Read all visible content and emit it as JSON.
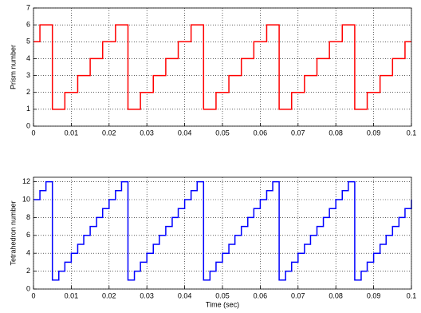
{
  "chart_data": [
    {
      "type": "line",
      "drawstyle": "steps-post",
      "ylabel": "Prism number",
      "color": "#ff0000",
      "grid": true,
      "x": [
        0,
        0.0017,
        0.005,
        0.0083,
        0.0117,
        0.015,
        0.0183,
        0.0217,
        0.025,
        0.0283,
        0.0317,
        0.035,
        0.0383,
        0.0417,
        0.045,
        0.0483,
        0.0517,
        0.055,
        0.0583,
        0.0617,
        0.065,
        0.0683,
        0.0717,
        0.075,
        0.0783,
        0.0817,
        0.085,
        0.0883,
        0.0917,
        0.095,
        0.0983,
        0.1
      ],
      "values": [
        5,
        6,
        1,
        2,
        3,
        4,
        5,
        6,
        1,
        2,
        3,
        4,
        5,
        6,
        1,
        2,
        3,
        4,
        5,
        6,
        1,
        2,
        3,
        4,
        5,
        6,
        1,
        2,
        3,
        4,
        5,
        5
      ],
      "xlim": [
        0,
        0.1
      ],
      "xticks": [
        0,
        0.01,
        0.02,
        0.03,
        0.04,
        0.05,
        0.06,
        0.07,
        0.08,
        0.09,
        0.1
      ],
      "ylim": [
        0,
        7
      ],
      "yticks": [
        0,
        1,
        2,
        3,
        4,
        5,
        6,
        7
      ]
    },
    {
      "type": "line",
      "drawstyle": "steps-post",
      "ylabel": "Tetrahedron number",
      "xlabel": "Time (sec)",
      "color": "#0000ff",
      "grid": true,
      "x": [
        0,
        0.0017,
        0.0033,
        0.005,
        0.0067,
        0.0083,
        0.01,
        0.0117,
        0.0133,
        0.015,
        0.0167,
        0.0183,
        0.02,
        0.0217,
        0.0233,
        0.025,
        0.0267,
        0.0283,
        0.03,
        0.0317,
        0.0333,
        0.035,
        0.0367,
        0.0383,
        0.04,
        0.0417,
        0.0433,
        0.045,
        0.0467,
        0.0483,
        0.05,
        0.0517,
        0.0533,
        0.055,
        0.0567,
        0.0583,
        0.06,
        0.0617,
        0.0633,
        0.065,
        0.0667,
        0.0683,
        0.07,
        0.0717,
        0.0733,
        0.075,
        0.0767,
        0.0783,
        0.08,
        0.0817,
        0.0833,
        0.085,
        0.0867,
        0.0883,
        0.09,
        0.0917,
        0.0933,
        0.095,
        0.0967,
        0.0983,
        0.1
      ],
      "values": [
        10,
        11,
        12,
        1,
        2,
        3,
        4,
        5,
        6,
        7,
        8,
        9,
        10,
        11,
        12,
        1,
        2,
        3,
        4,
        5,
        6,
        7,
        8,
        9,
        10,
        11,
        12,
        1,
        2,
        3,
        4,
        5,
        6,
        7,
        8,
        9,
        10,
        11,
        12,
        1,
        2,
        3,
        4,
        5,
        6,
        7,
        8,
        9,
        10,
        11,
        12,
        1,
        2,
        3,
        4,
        5,
        6,
        7,
        8,
        9,
        10
      ],
      "xlim": [
        0,
        0.1
      ],
      "xticks": [
        0,
        0.01,
        0.02,
        0.03,
        0.04,
        0.05,
        0.06,
        0.07,
        0.08,
        0.09,
        0.1
      ],
      "ylim": [
        0,
        12.5
      ],
      "yticks": [
        0,
        2,
        4,
        6,
        8,
        10,
        12
      ]
    }
  ]
}
